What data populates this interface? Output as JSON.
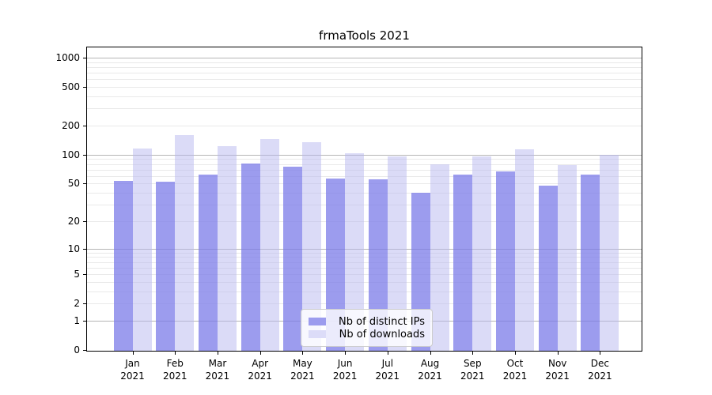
{
  "figure": {
    "title": "frmaTools 2021"
  },
  "chart_data": {
    "type": "bar",
    "title": "frmaTools 2021",
    "categories": [
      "Jan",
      "Feb",
      "Mar",
      "Apr",
      "May",
      "Jun",
      "Jul",
      "Aug",
      "Sep",
      "Oct",
      "Nov",
      "Dec"
    ],
    "year": "2021",
    "series": [
      {
        "name": "Nb of distinct IPs",
        "legend_color": "#9c9cee",
        "bar_fill": "rgba(123,123,232,0.75)",
        "values": [
          54,
          53,
          63,
          82,
          77,
          58,
          57,
          41,
          63,
          68,
          49,
          64
        ]
      },
      {
        "name": "Nb of downloads",
        "legend_color": "#dcdcf8",
        "bar_fill": "rgba(184,184,240,0.5)",
        "values": [
          118,
          164,
          125,
          149,
          138,
          106,
          98,
          81,
          98,
          116,
          79,
          102
        ]
      }
    ],
    "yscale": "log1p",
    "yticks": [
      0,
      1,
      2,
      5,
      10,
      20,
      50,
      100,
      200,
      500,
      1000
    ],
    "ylim": [
      0,
      1300
    ],
    "grid": "both",
    "legend_position": "lower center"
  },
  "colors": {
    "major_grid": "#b5b5b5",
    "minor_grid": "#e9e9e9",
    "spine": "#000000"
  }
}
